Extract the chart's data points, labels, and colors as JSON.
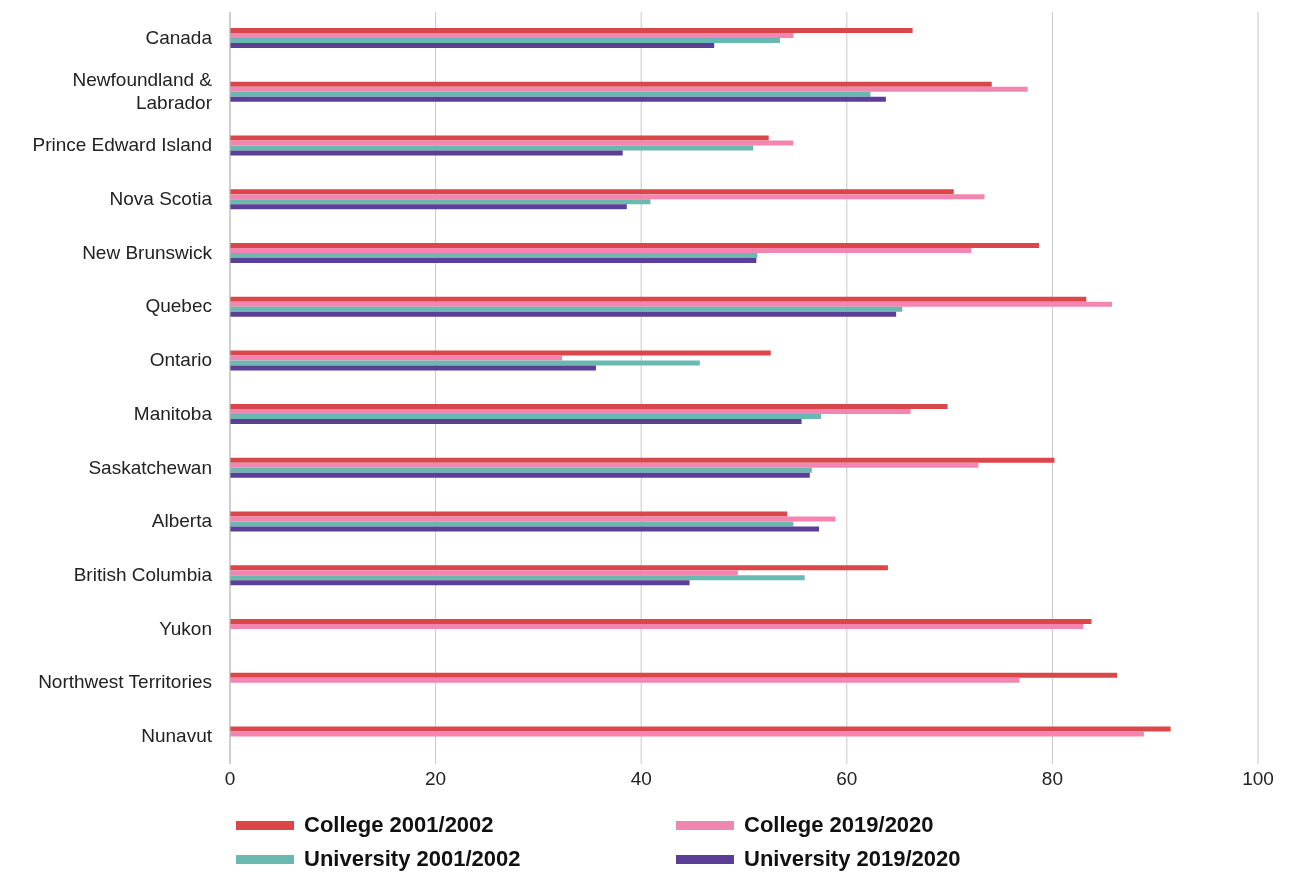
{
  "chart_data": {
    "type": "bar",
    "orientation": "horizontal",
    "categories": [
      "Canada",
      "Newfoundland & Labrador",
      "Prince Edward Island",
      "Nova Scotia",
      "New Brunswick",
      "Quebec",
      "Ontario",
      "Manitoba",
      "Saskatchewan",
      "Alberta",
      "British Columbia",
      "Yukon",
      "Northwest Territories",
      "Nunavut"
    ],
    "series": [
      {
        "name": "College 2001/2002",
        "color": "#d9474a",
        "values": [
          66.4,
          74.1,
          52.4,
          70.4,
          78.7,
          83.3,
          52.6,
          69.8,
          80.2,
          54.2,
          64.0,
          83.8,
          86.3,
          91.5
        ]
      },
      {
        "name": "College 2019/2020",
        "color": "#f286b0",
        "values": [
          54.8,
          77.6,
          54.8,
          73.4,
          72.1,
          85.8,
          32.3,
          66.2,
          72.8,
          58.9,
          49.4,
          83.0,
          76.8,
          88.9
        ]
      },
      {
        "name": "University 2001/2002",
        "color": "#6bb8b0",
        "values": [
          53.5,
          62.3,
          50.9,
          40.9,
          51.3,
          65.4,
          45.7,
          57.5,
          56.6,
          54.8,
          55.9,
          0,
          0,
          0
        ]
      },
      {
        "name": "University 2019/2020",
        "color": "#5b3f97",
        "values": [
          47.1,
          63.8,
          38.2,
          38.6,
          51.2,
          64.8,
          35.6,
          55.6,
          56.4,
          57.3,
          44.7,
          0,
          0,
          0
        ]
      }
    ],
    "xlim": [
      0,
      100
    ],
    "xticks": [
      0,
      20,
      40,
      60,
      80,
      100
    ],
    "grid": "x",
    "legend": "bottom"
  }
}
